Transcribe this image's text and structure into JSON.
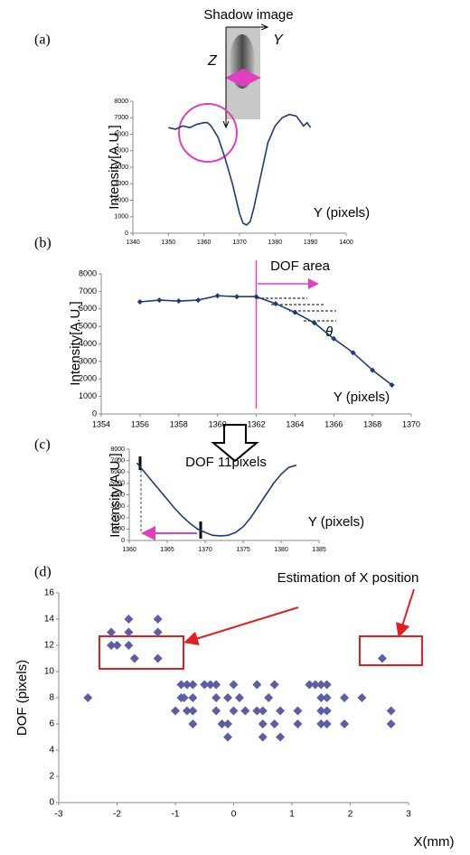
{
  "chart_data": [
    {
      "type": "line",
      "panel_label": "(a)",
      "image_title": "Shadow image",
      "axis_z": "Z",
      "axis_y": "Y",
      "ylabel": "Intensity[A.U.]",
      "xlabel": "Y (pixels)",
      "color": "#1f3a7a",
      "x": [
        1350,
        1352,
        1354,
        1356,
        1358,
        1360,
        1361,
        1362,
        1364,
        1366,
        1368,
        1370,
        1371,
        1372,
        1373,
        1374,
        1376,
        1378,
        1380,
        1382,
        1384,
        1386,
        1388,
        1389,
        1390
      ],
      "values": [
        6400,
        6300,
        6500,
        6400,
        6600,
        6700,
        6700,
        6500,
        5800,
        4500,
        3000,
        1200,
        600,
        500,
        700,
        1500,
        3500,
        5500,
        6500,
        7000,
        7200,
        7100,
        6500,
        6700,
        6400
      ],
      "xlim": [
        1340,
        1400
      ],
      "xticks": [
        1340,
        1350,
        1360,
        1370,
        1380,
        1390,
        1400
      ],
      "ylim": [
        0,
        8000
      ],
      "yticks": [
        0,
        1000,
        2000,
        3000,
        4000,
        5000,
        6000,
        7000,
        8000
      ]
    },
    {
      "type": "line",
      "marker": "diamond",
      "panel_label": "(b)",
      "annotations": [
        "DOF area",
        "θ"
      ],
      "ylabel": "Intensity[A.U.]",
      "xlabel": "Y (pixels)",
      "color": "#1f3a7a",
      "x": [
        1356,
        1357,
        1358,
        1359,
        1360,
        1361,
        1362,
        1363,
        1364,
        1365,
        1366,
        1367,
        1368,
        1369
      ],
      "values": [
        6400,
        6500,
        6450,
        6500,
        6750,
        6700,
        6700,
        6300,
        5800,
        5200,
        4300,
        3500,
        2500,
        1650
      ],
      "xlim": [
        1354,
        1370
      ],
      "xticks": [
        1354,
        1356,
        1358,
        1360,
        1362,
        1364,
        1366,
        1368,
        1370
      ],
      "ylim": [
        0,
        8000
      ],
      "yticks": [
        0,
        1000,
        2000,
        3000,
        4000,
        5000,
        6000,
        7000,
        8000
      ]
    },
    {
      "type": "line",
      "panel_label": "(c)",
      "annotation": "DOF 11pixels",
      "ylabel": "Intensity[A.U.]",
      "xlabel": "Y (pixels)",
      "color": "#1f3a7a",
      "x": [
        1361,
        1362,
        1363,
        1364,
        1365,
        1366,
        1367,
        1368,
        1369,
        1370,
        1371,
        1372,
        1373,
        1374,
        1375,
        1376,
        1377,
        1378,
        1379,
        1380,
        1381,
        1382
      ],
      "values": [
        6800,
        6000,
        5200,
        4400,
        3600,
        2800,
        2100,
        1500,
        1000,
        700,
        450,
        400,
        450,
        700,
        1200,
        2000,
        3000,
        4000,
        5000,
        5800,
        6400,
        6600
      ],
      "xlim": [
        1360,
        1385
      ],
      "xticks": [
        1360,
        1365,
        1370,
        1375,
        1380,
        1385
      ],
      "ylim": [
        0,
        8000
      ],
      "yticks": [
        0,
        1000,
        2000,
        3000,
        4000,
        5000,
        6000,
        7000,
        8000
      ]
    },
    {
      "type": "scatter",
      "marker": "diamond",
      "panel_label": "(d)",
      "annotation": "Estimation of X position",
      "ylabel": "DOF (pixels)",
      "xlabel": "X(mm)",
      "color": "#5b5ea6",
      "x": [
        -2.5,
        -2.1,
        -2.1,
        -2.0,
        -1.8,
        -1.8,
        -1.8,
        -1.7,
        -1.3,
        -1.3,
        -1.3,
        -1.0,
        -0.9,
        -0.9,
        -0.85,
        -0.8,
        -0.8,
        -0.7,
        -0.7,
        -0.7,
        -0.7,
        -0.5,
        -0.4,
        -0.3,
        -0.3,
        -0.3,
        -0.2,
        -0.1,
        -0.1,
        -0.1,
        0,
        0,
        0.1,
        0.2,
        0.4,
        0.4,
        0.5,
        0.5,
        0.5,
        0.6,
        0.7,
        0.7,
        0.8,
        0.8,
        1.1,
        1.1,
        1.3,
        1.4,
        1.5,
        1.5,
        1.5,
        1.5,
        1.6,
        1.6,
        1.6,
        1.6,
        1.9,
        1.9,
        2.2,
        2.55,
        2.7,
        2.7
      ],
      "values": [
        8,
        13,
        12,
        12,
        14,
        13,
        12,
        11,
        14,
        13,
        11,
        7,
        9,
        8,
        8,
        9,
        7,
        9,
        8,
        7,
        6,
        9,
        9,
        9,
        8,
        7,
        6,
        8,
        6,
        5,
        9,
        7,
        8,
        7,
        9,
        7,
        7,
        6,
        5,
        8,
        9,
        6,
        7,
        5,
        7,
        6,
        9,
        9,
        9,
        8,
        7,
        6,
        9,
        8,
        7,
        6,
        8,
        6,
        8,
        11,
        7,
        6
      ],
      "xlim": [
        -3,
        3
      ],
      "xticks": [
        -3,
        -2,
        -1,
        0,
        1,
        2,
        3
      ],
      "ylim": [
        0,
        16
      ],
      "yticks": [
        0,
        2,
        4,
        6,
        8,
        10,
        12,
        14,
        16
      ]
    }
  ]
}
